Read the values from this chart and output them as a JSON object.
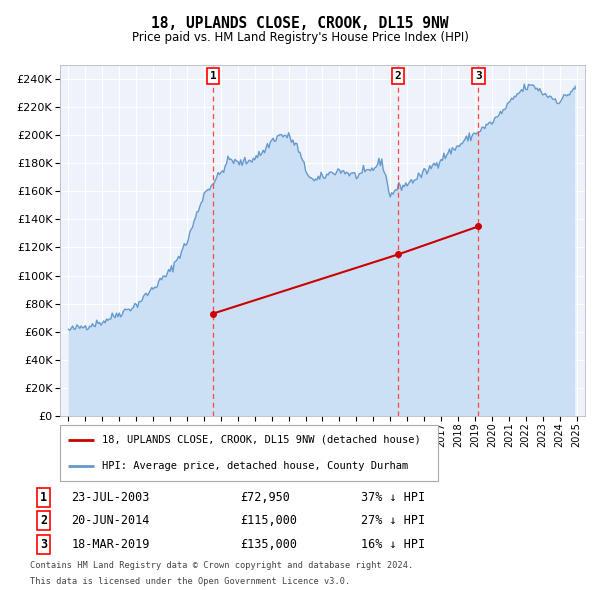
{
  "title": "18, UPLANDS CLOSE, CROOK, DL15 9NW",
  "subtitle": "Price paid vs. HM Land Registry's House Price Index (HPI)",
  "legend_line1": "18, UPLANDS CLOSE, CROOK, DL15 9NW (detached house)",
  "legend_line2": "HPI: Average price, detached house, County Durham",
  "footer1": "Contains HM Land Registry data © Crown copyright and database right 2024.",
  "footer2": "This data is licensed under the Open Government Licence v3.0.",
  "sales": [
    {
      "num": 1,
      "date": "23-JUL-2003",
      "date_x": 2003.55,
      "price": 72950,
      "pct": "37%"
    },
    {
      "num": 2,
      "date": "20-JUN-2014",
      "date_x": 2014.46,
      "price": 115000,
      "pct": "27%"
    },
    {
      "num": 3,
      "date": "18-MAR-2019",
      "date_x": 2019.21,
      "price": 135000,
      "pct": "16%"
    }
  ],
  "hpi_color": "#6699cc",
  "hpi_fill_color": "#cce0f5",
  "price_color": "#cc0000",
  "vline_color": "#ff4444",
  "background_color": "#ffffff",
  "plot_bg_color": "#eef3fb",
  "ylim": [
    0,
    250000
  ],
  "yticks": [
    0,
    20000,
    40000,
    60000,
    80000,
    100000,
    120000,
    140000,
    160000,
    180000,
    200000,
    220000,
    240000
  ],
  "xlim": [
    1994.5,
    2025.5
  ],
  "price_data": [
    [
      2003.55,
      72950
    ],
    [
      2014.46,
      115000
    ],
    [
      2019.21,
      135000
    ]
  ]
}
